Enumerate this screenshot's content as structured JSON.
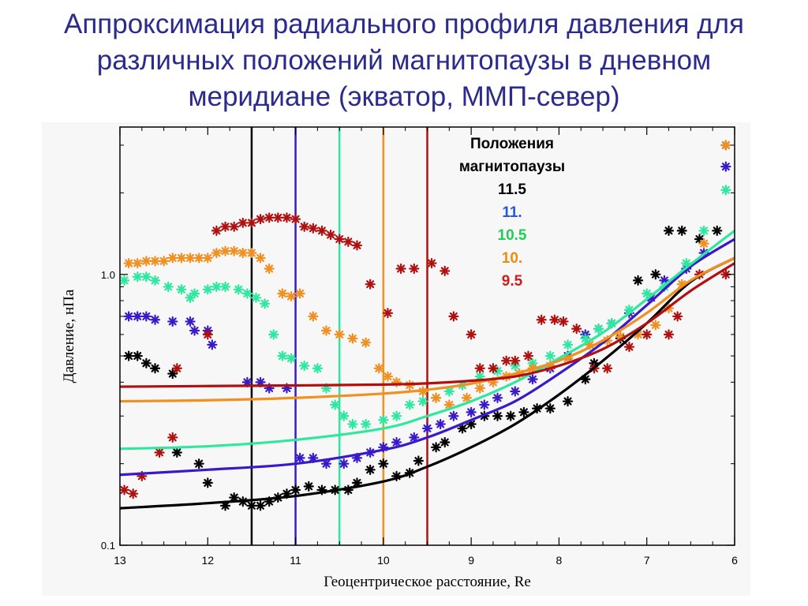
{
  "title": {
    "lines": [
      "Аппроксимация радиального профиля давления для",
      "различных положений магнитопаузы в дневном",
      "меридиане (экватор, ММП-север)"
    ]
  },
  "chart_data": {
    "type": "scatter",
    "xlabel": "Геоцентрическое расстояние, Re",
    "ylabel": "Давление, нПа",
    "xlim": [
      13,
      6
    ],
    "ylim": [
      0.1,
      3.5
    ],
    "y_scale": "log",
    "grid": false,
    "x_ticks": [
      "13",
      "12",
      "11",
      "10",
      "9",
      "8",
      "7",
      "6"
    ],
    "y_ticks": [
      "0.1",
      "1.0"
    ],
    "legend": {
      "title_lines": [
        "Положения",
        "магнитопаузы"
      ],
      "placement": "top-center",
      "entries": [
        {
          "label": "11.5",
          "color": "#000000"
        },
        {
          "label": "11.",
          "color": "#1f5ae6"
        },
        {
          "label": "10.5",
          "color": "#22cc55"
        },
        {
          "label": "10.",
          "color": "#f08a10"
        },
        {
          "label": "9.5",
          "color": "#d01c1c"
        }
      ]
    },
    "magnetopause_positions": [
      {
        "x": 11.5,
        "color": "#000000"
      },
      {
        "x": 11.0,
        "color": "#3a1ac8"
      },
      {
        "x": 10.5,
        "color": "#2ee8a0"
      },
      {
        "x": 10.0,
        "color": "#f09020"
      },
      {
        "x": 9.5,
        "color": "#b01010"
      }
    ],
    "series": [
      {
        "marker_color": "#000000",
        "fit_color": "#000000",
        "points": [
          [
            12.9,
            0.5
          ],
          [
            12.8,
            0.5
          ],
          [
            12.7,
            0.47
          ],
          [
            12.6,
            0.45
          ],
          [
            12.4,
            0.43
          ],
          [
            12.35,
            0.22
          ],
          [
            12.1,
            0.2
          ],
          [
            12.0,
            0.17
          ],
          [
            11.8,
            0.14
          ],
          [
            11.7,
            0.15
          ],
          [
            11.6,
            0.145
          ],
          [
            11.5,
            0.14
          ],
          [
            11.4,
            0.14
          ],
          [
            11.3,
            0.145
          ],
          [
            11.2,
            0.15
          ],
          [
            11.1,
            0.155
          ],
          [
            11.0,
            0.16
          ],
          [
            10.85,
            0.165
          ],
          [
            10.7,
            0.16
          ],
          [
            10.55,
            0.16
          ],
          [
            10.4,
            0.16
          ],
          [
            10.3,
            0.17
          ],
          [
            10.15,
            0.19
          ],
          [
            10.0,
            0.2
          ],
          [
            9.85,
            0.18
          ],
          [
            9.7,
            0.185
          ],
          [
            9.6,
            0.205
          ],
          [
            9.4,
            0.23
          ],
          [
            9.3,
            0.24
          ],
          [
            9.1,
            0.27
          ],
          [
            9.0,
            0.28
          ],
          [
            8.85,
            0.3
          ],
          [
            8.7,
            0.3
          ],
          [
            8.55,
            0.3
          ],
          [
            8.4,
            0.31
          ],
          [
            8.25,
            0.32
          ],
          [
            8.1,
            0.32
          ],
          [
            7.9,
            0.34
          ],
          [
            7.7,
            0.41
          ],
          [
            7.6,
            0.47
          ],
          [
            7.3,
            0.58
          ],
          [
            7.1,
            0.95
          ],
          [
            6.9,
            1.0
          ],
          [
            6.75,
            1.45
          ],
          [
            6.6,
            1.45
          ],
          [
            6.4,
            1.35
          ],
          [
            6.2,
            1.45
          ],
          [
            6.1,
            3.0
          ]
        ],
        "fit": [
          [
            13.0,
            0.137
          ],
          [
            12.0,
            0.143
          ],
          [
            11.0,
            0.152
          ],
          [
            10.0,
            0.172
          ],
          [
            9.5,
            0.195
          ],
          [
            9.0,
            0.23
          ],
          [
            8.5,
            0.28
          ],
          [
            8.0,
            0.36
          ],
          [
            7.5,
            0.48
          ],
          [
            7.0,
            0.66
          ],
          [
            6.5,
            0.94
          ],
          [
            6.0,
            1.15
          ]
        ]
      },
      {
        "marker_color": "#3a1ac8",
        "fit_color": "#3a1ac8",
        "points": [
          [
            12.9,
            0.7
          ],
          [
            12.8,
            0.7
          ],
          [
            12.7,
            0.7
          ],
          [
            12.6,
            0.68
          ],
          [
            12.4,
            0.67
          ],
          [
            12.2,
            0.67
          ],
          [
            12.15,
            0.62
          ],
          [
            12.0,
            0.62
          ],
          [
            11.95,
            0.55
          ],
          [
            11.55,
            0.4
          ],
          [
            11.4,
            0.4
          ],
          [
            11.3,
            0.38
          ],
          [
            11.1,
            0.38
          ],
          [
            10.95,
            0.21
          ],
          [
            10.8,
            0.21
          ],
          [
            10.65,
            0.2
          ],
          [
            10.45,
            0.2
          ],
          [
            10.3,
            0.21
          ],
          [
            10.15,
            0.22
          ],
          [
            10.0,
            0.23
          ],
          [
            9.85,
            0.24
          ],
          [
            9.65,
            0.25
          ],
          [
            9.5,
            0.27
          ],
          [
            9.35,
            0.28
          ],
          [
            9.2,
            0.3
          ],
          [
            9.0,
            0.31
          ],
          [
            8.85,
            0.33
          ],
          [
            8.7,
            0.35
          ],
          [
            8.5,
            0.37
          ],
          [
            8.3,
            0.41
          ],
          [
            8.1,
            0.45
          ],
          [
            7.9,
            0.5
          ],
          [
            7.7,
            0.6
          ],
          [
            7.55,
            0.63
          ],
          [
            7.4,
            0.66
          ],
          [
            7.2,
            0.72
          ],
          [
            6.95,
            0.82
          ],
          [
            6.8,
            0.95
          ],
          [
            6.55,
            1.05
          ],
          [
            6.35,
            1.2
          ],
          [
            6.1,
            2.5
          ]
        ],
        "fit": [
          [
            13.0,
            0.182
          ],
          [
            12.0,
            0.19
          ],
          [
            11.0,
            0.2
          ],
          [
            10.0,
            0.225
          ],
          [
            9.5,
            0.25
          ],
          [
            9.0,
            0.29
          ],
          [
            8.5,
            0.34
          ],
          [
            8.0,
            0.43
          ],
          [
            7.5,
            0.56
          ],
          [
            7.0,
            0.77
          ],
          [
            6.5,
            1.07
          ],
          [
            6.0,
            1.35
          ]
        ]
      },
      {
        "marker_color": "#2ee8a0",
        "fit_color": "#2ee8a0",
        "points": [
          [
            12.95,
            0.95
          ],
          [
            12.8,
            0.98
          ],
          [
            12.7,
            0.98
          ],
          [
            12.6,
            0.95
          ],
          [
            12.45,
            0.9
          ],
          [
            12.3,
            0.88
          ],
          [
            12.2,
            0.82
          ],
          [
            12.15,
            0.85
          ],
          [
            12.0,
            0.88
          ],
          [
            11.9,
            0.9
          ],
          [
            11.8,
            0.9
          ],
          [
            11.65,
            0.88
          ],
          [
            11.55,
            0.85
          ],
          [
            11.45,
            0.82
          ],
          [
            11.35,
            0.78
          ],
          [
            11.25,
            0.6
          ],
          [
            11.15,
            0.5
          ],
          [
            11.05,
            0.49
          ],
          [
            10.9,
            0.46
          ],
          [
            10.75,
            0.45
          ],
          [
            10.65,
            0.38
          ],
          [
            10.55,
            0.33
          ],
          [
            10.45,
            0.3
          ],
          [
            10.35,
            0.28
          ],
          [
            10.2,
            0.28
          ],
          [
            10.0,
            0.29
          ],
          [
            9.85,
            0.3
          ],
          [
            9.7,
            0.33
          ],
          [
            9.55,
            0.34
          ],
          [
            9.4,
            0.35
          ],
          [
            9.25,
            0.37
          ],
          [
            9.1,
            0.39
          ],
          [
            8.9,
            0.42
          ],
          [
            8.7,
            0.44
          ],
          [
            8.5,
            0.46
          ],
          [
            8.3,
            0.47
          ],
          [
            8.1,
            0.5
          ],
          [
            7.9,
            0.55
          ],
          [
            7.7,
            0.58
          ],
          [
            7.55,
            0.63
          ],
          [
            7.4,
            0.66
          ],
          [
            7.2,
            0.74
          ],
          [
            7.0,
            0.85
          ],
          [
            6.8,
            0.9
          ],
          [
            6.55,
            1.1
          ],
          [
            6.35,
            1.45
          ],
          [
            6.1,
            2.05
          ]
        ],
        "fit": [
          [
            13.0,
            0.227
          ],
          [
            12.0,
            0.232
          ],
          [
            11.0,
            0.245
          ],
          [
            10.0,
            0.27
          ],
          [
            9.5,
            0.3
          ],
          [
            9.0,
            0.34
          ],
          [
            8.5,
            0.4
          ],
          [
            8.0,
            0.49
          ],
          [
            7.5,
            0.61
          ],
          [
            7.0,
            0.81
          ],
          [
            6.5,
            1.09
          ],
          [
            6.0,
            1.45
          ]
        ]
      },
      {
        "marker_color": "#f09020",
        "fit_color": "#f09020",
        "points": [
          [
            12.9,
            1.1
          ],
          [
            12.8,
            1.1
          ],
          [
            12.7,
            1.12
          ],
          [
            12.6,
            1.12
          ],
          [
            12.5,
            1.12
          ],
          [
            12.4,
            1.15
          ],
          [
            12.3,
            1.15
          ],
          [
            12.2,
            1.15
          ],
          [
            12.1,
            1.15
          ],
          [
            12.0,
            1.15
          ],
          [
            11.9,
            1.2
          ],
          [
            11.8,
            1.22
          ],
          [
            11.7,
            1.22
          ],
          [
            11.6,
            1.2
          ],
          [
            11.5,
            1.2
          ],
          [
            11.4,
            1.15
          ],
          [
            11.3,
            1.05
          ],
          [
            11.15,
            0.85
          ],
          [
            11.05,
            0.83
          ],
          [
            10.95,
            0.85
          ],
          [
            10.8,
            0.7
          ],
          [
            10.65,
            0.62
          ],
          [
            10.5,
            0.6
          ],
          [
            10.35,
            0.58
          ],
          [
            10.2,
            0.56
          ],
          [
            10.05,
            0.45
          ],
          [
            9.95,
            0.42
          ],
          [
            9.85,
            0.4
          ],
          [
            9.7,
            0.39
          ],
          [
            9.55,
            0.37
          ],
          [
            9.4,
            0.35
          ],
          [
            9.25,
            0.33
          ],
          [
            9.05,
            0.35
          ],
          [
            8.9,
            0.38
          ],
          [
            8.75,
            0.4
          ],
          [
            8.6,
            0.42
          ],
          [
            8.45,
            0.43
          ],
          [
            8.3,
            0.45
          ],
          [
            8.1,
            0.46
          ],
          [
            7.9,
            0.49
          ],
          [
            7.65,
            0.55
          ],
          [
            7.45,
            0.57
          ],
          [
            7.3,
            0.59
          ],
          [
            7.1,
            0.6
          ],
          [
            6.9,
            0.65
          ],
          [
            6.75,
            0.75
          ],
          [
            6.6,
            0.92
          ],
          [
            6.35,
            1.3
          ],
          [
            6.1,
            3.0
          ]
        ],
        "fit": [
          [
            13.0,
            0.34
          ],
          [
            12.0,
            0.343
          ],
          [
            11.0,
            0.35
          ],
          [
            10.0,
            0.363
          ],
          [
            9.5,
            0.375
          ],
          [
            9.0,
            0.395
          ],
          [
            8.5,
            0.43
          ],
          [
            8.0,
            0.48
          ],
          [
            7.5,
            0.57
          ],
          [
            7.0,
            0.72
          ],
          [
            6.5,
            0.95
          ],
          [
            6.0,
            1.15
          ]
        ]
      },
      {
        "marker_color": "#b01010",
        "fit_color": "#b01010",
        "points": [
          [
            12.95,
            0.16
          ],
          [
            12.85,
            0.155
          ],
          [
            12.75,
            0.18
          ],
          [
            12.55,
            0.22
          ],
          [
            12.4,
            0.25
          ],
          [
            12.35,
            0.45
          ],
          [
            12.0,
            0.6
          ],
          [
            11.9,
            1.45
          ],
          [
            11.8,
            1.5
          ],
          [
            11.7,
            1.5
          ],
          [
            11.6,
            1.55
          ],
          [
            11.5,
            1.55
          ],
          [
            11.4,
            1.6
          ],
          [
            11.3,
            1.62
          ],
          [
            11.2,
            1.62
          ],
          [
            11.1,
            1.62
          ],
          [
            11.0,
            1.6
          ],
          [
            10.9,
            1.5
          ],
          [
            10.8,
            1.48
          ],
          [
            10.7,
            1.45
          ],
          [
            10.6,
            1.4
          ],
          [
            10.5,
            1.35
          ],
          [
            10.4,
            1.32
          ],
          [
            10.3,
            1.28
          ],
          [
            10.15,
            0.92
          ],
          [
            9.95,
            0.72
          ],
          [
            9.8,
            1.05
          ],
          [
            9.65,
            1.05
          ],
          [
            9.45,
            1.1
          ],
          [
            9.3,
            1.03
          ],
          [
            9.2,
            0.7
          ],
          [
            9.0,
            0.6
          ],
          [
            8.9,
            0.45
          ],
          [
            8.75,
            0.45
          ],
          [
            8.6,
            0.48
          ],
          [
            8.5,
            0.48
          ],
          [
            8.35,
            0.5
          ],
          [
            8.2,
            0.68
          ],
          [
            8.05,
            0.68
          ],
          [
            7.95,
            0.67
          ],
          [
            7.8,
            0.63
          ],
          [
            7.6,
            0.45
          ],
          [
            7.45,
            0.45
          ],
          [
            7.2,
            0.54
          ],
          [
            7.0,
            0.6
          ],
          [
            6.75,
            0.6
          ],
          [
            6.65,
            0.7
          ],
          [
            6.4,
            1.0
          ],
          [
            6.1,
            1.0
          ]
        ],
        "fit": [
          [
            13.0,
            0.385
          ],
          [
            12.0,
            0.387
          ],
          [
            11.0,
            0.389
          ],
          [
            10.0,
            0.392
          ],
          [
            9.5,
            0.396
          ],
          [
            9.0,
            0.405
          ],
          [
            8.5,
            0.42
          ],
          [
            8.0,
            0.46
          ],
          [
            7.5,
            0.53
          ],
          [
            7.0,
            0.66
          ],
          [
            6.5,
            0.87
          ],
          [
            6.0,
            1.1
          ]
        ]
      }
    ]
  }
}
